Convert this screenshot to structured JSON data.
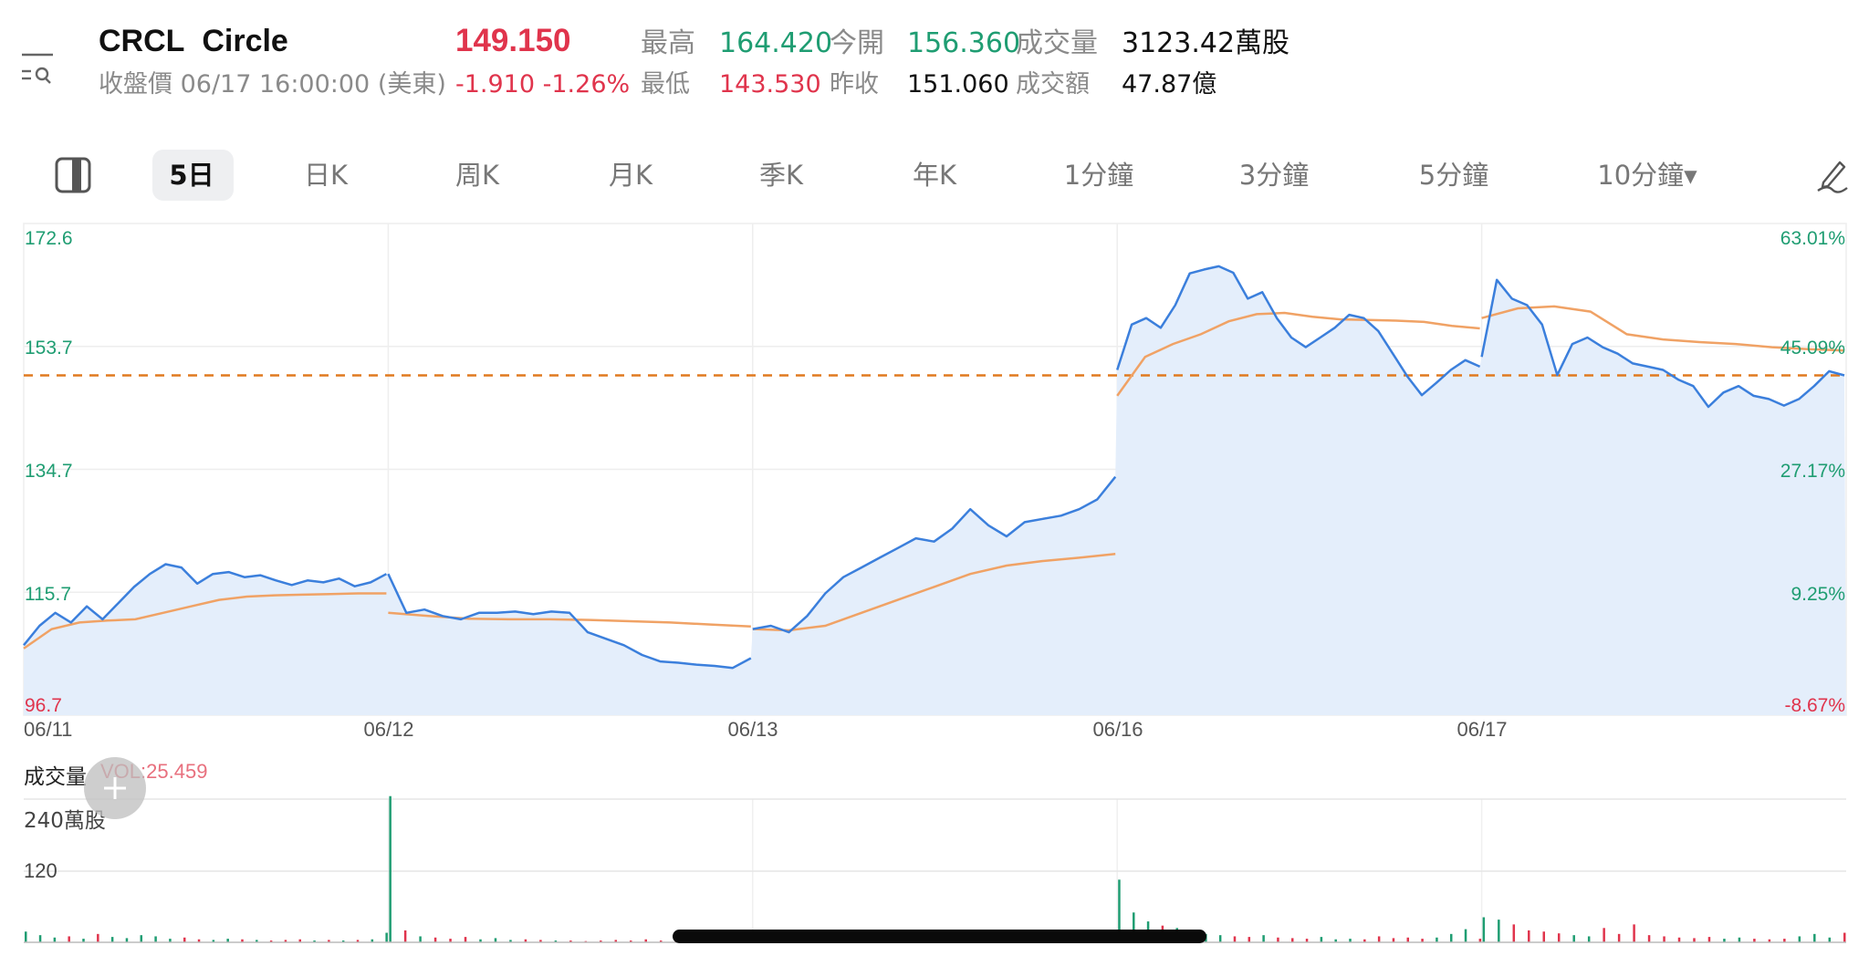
{
  "header": {
    "symbol": "CRCL",
    "name": "Circle",
    "status_text": "收盤價 06/17 16:00:00 (美東)",
    "last_price": "149.150",
    "change": "-1.910",
    "change_pct": "-1.26%",
    "stats": [
      {
        "label": "最高",
        "value": "164.420",
        "color": "green"
      },
      {
        "label": "今開",
        "value": "156.360",
        "color": "green"
      },
      {
        "label": "成交量",
        "value": "3123.42萬股",
        "color": "black"
      },
      {
        "label": "最低",
        "value": "143.530",
        "color": "red"
      },
      {
        "label": "昨收",
        "value": "151.060",
        "color": "black"
      },
      {
        "label": "成交額",
        "value": "47.87億",
        "color": "black"
      }
    ]
  },
  "toolbar": {
    "tabs": [
      {
        "label": "5日",
        "active": true
      },
      {
        "label": "日K"
      },
      {
        "label": "周K"
      },
      {
        "label": "月K"
      },
      {
        "label": "季K"
      },
      {
        "label": "年K"
      },
      {
        "label": "1分鐘"
      },
      {
        "label": "3分鐘"
      },
      {
        "label": "5分鐘"
      },
      {
        "label": "10分鐘▾"
      }
    ],
    "icons": [
      "layout-toggle-icon",
      "draw-pen-icon",
      "menu-search-icon"
    ]
  },
  "colors": {
    "up": "#1f9d72",
    "down": "#e0344c",
    "line": "#3b7fdc",
    "fill": "#e4eefb",
    "avg": "#f0a265",
    "ref": "#e07a20"
  },
  "chart_data": [
    {
      "type": "area",
      "x_categories": [
        "06/11",
        "06/12",
        "06/13",
        "06/16",
        "06/17"
      ],
      "ylim": [
        96.7,
        172.6
      ],
      "left_ticks": [
        "172.6",
        "153.7",
        "134.7",
        "115.7",
        "96.7"
      ],
      "right_ticks": [
        "63.01%",
        "45.09%",
        "27.17%",
        "9.25%",
        "-8.67%"
      ],
      "grid": true,
      "reference_line": 149.15,
      "series": [
        {
          "role": "price",
          "days": [
            [
              107.5,
              110.5,
              112.5,
              111,
              113.5,
              111.5,
              114,
              116.5,
              118.5,
              120,
              119.5,
              117,
              118.5,
              118.8,
              118,
              118.3,
              117.5,
              116.8,
              117.5,
              117.2,
              117.8,
              116.6,
              117.2,
              118.5
            ],
            [
              118.5,
              112.5,
              113,
              112,
              111.5,
              112.5,
              112.5,
              112.7,
              112.3,
              112.7,
              112.5,
              109.5,
              108.5,
              107.5,
              106,
              105,
              104.8,
              104.5,
              104.3,
              104,
              105.5
            ],
            [
              110,
              110.5,
              109.5,
              112,
              115.5,
              118,
              119.5,
              121,
              122.5,
              124,
              123.5,
              125.5,
              128.5,
              126,
              124.3,
              126.5,
              127,
              127.5,
              128.5,
              130,
              133.5
            ],
            [
              150,
              157,
              158,
              156.5,
              160,
              164.9,
              165.5,
              166,
              165,
              161,
              162,
              158,
              155,
              153.5,
              155,
              156.5,
              158.5,
              158,
              156,
              152.5,
              149,
              146.1,
              148,
              150,
              151.5,
              150.5
            ],
            [
              152,
              163.9,
              161,
              160,
              157,
              149.2,
              154,
              155,
              153.5,
              152.5,
              151,
              150.5,
              150,
              148.5,
              147.5,
              144.3,
              146.5,
              147.5,
              146,
              145.5,
              144.5,
              145.5,
              147.5,
              149.8,
              149.15
            ]
          ]
        },
        {
          "role": "average",
          "days": [
            [
              107,
              110,
              111,
              111.3,
              111.5,
              112.5,
              113.5,
              114.5,
              115,
              115.2,
              115.3,
              115.4,
              115.5,
              115.5
            ],
            [
              112.5,
              112,
              111.6,
              111.5,
              111.5,
              111.4,
              111.2,
              111,
              110.7,
              110.4
            ],
            [
              110,
              109.8,
              110.5,
              112.5,
              114.5,
              116.5,
              118.5,
              119.8,
              120.5,
              121,
              121.6
            ],
            [
              146,
              152,
              154,
              155.5,
              157.5,
              158.6,
              158.8,
              158.2,
              157.8,
              157.7,
              157.6,
              157.4,
              156.8,
              156.4
            ],
            [
              158,
              159.5,
              159.8,
              159,
              155.5,
              154.7,
              154.3,
              154,
              153.5,
              153.2,
              153
            ]
          ]
        }
      ]
    },
    {
      "type": "bar",
      "title": "成交量",
      "indicator": "VOL:25.459",
      "unit_label": "240萬股",
      "ticks": [
        "240萬股",
        "120"
      ],
      "ylim": [
        0,
        240
      ],
      "days": [
        [
          18,
          12,
          8,
          10,
          6,
          14,
          9,
          7,
          12,
          10,
          6,
          8,
          5,
          4,
          6,
          5,
          4,
          3,
          4,
          5,
          3,
          4,
          3,
          4,
          5,
          16
        ],
        [
          245,
          20,
          10,
          8,
          6,
          9,
          5,
          7,
          4,
          5,
          4,
          3,
          3,
          2,
          3,
          4,
          3,
          5,
          3,
          10,
          4,
          3,
          2,
          12,
          6
        ],
        [
          8,
          4,
          3,
          10,
          4,
          3,
          5,
          3,
          12,
          4,
          3,
          4,
          9,
          3,
          3,
          2,
          4,
          3,
          3,
          2,
          3,
          4,
          5,
          4,
          6
        ],
        [
          105,
          50,
          35,
          28,
          24,
          20,
          14,
          12,
          10,
          9,
          12,
          8,
          7,
          6,
          9,
          5,
          6,
          5,
          10,
          7,
          8,
          6,
          8,
          14,
          22,
          6
        ],
        [
          42,
          38,
          30,
          20,
          18,
          15,
          12,
          10,
          24,
          14,
          30,
          12,
          10,
          8,
          7,
          9,
          6,
          8,
          6,
          5,
          6,
          10,
          14,
          8,
          16
        ]
      ]
    }
  ]
}
